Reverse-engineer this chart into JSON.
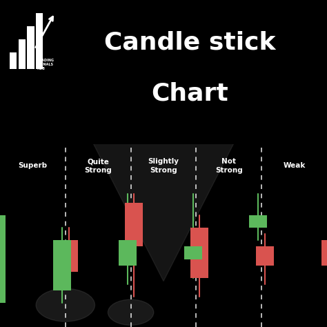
{
  "title_line1": "Candle stick",
  "title_line2": "Chart",
  "bg_color": "#000000",
  "chart_bg": "#3a3a3a",
  "green_color": "#5cb85c",
  "red_color": "#d9534f",
  "dashed_line_color": "#ffffff",
  "label_color": "#ffffff",
  "sections": [
    {
      "label": "Superb",
      "candles": [
        {
          "open": 1.5,
          "close": 8.5,
          "low": 0.5,
          "high": 9.2,
          "color": "green"
        },
        {
          "open": 6.5,
          "close": 4.0,
          "low": 3.0,
          "high": 7.5,
          "color": "red"
        }
      ]
    },
    {
      "label": "Quite\nStrong",
      "candles": [
        {
          "open": 2.5,
          "close": 6.5,
          "low": 1.5,
          "high": 7.5,
          "color": "green"
        },
        {
          "open": 9.5,
          "close": 6.0,
          "low": 2.0,
          "high": 10.2,
          "color": "red"
        }
      ]
    },
    {
      "label": "Slightly\nStrong",
      "candles": [
        {
          "open": 4.5,
          "close": 6.5,
          "low": 3.0,
          "high": 10.2,
          "color": "green"
        },
        {
          "open": 7.5,
          "close": 3.5,
          "low": 2.0,
          "high": 8.5,
          "color": "red"
        }
      ]
    },
    {
      "label": "Not\nStrong",
      "candles": [
        {
          "open": 5.0,
          "close": 6.0,
          "low": 3.5,
          "high": 10.2,
          "color": "green"
        },
        {
          "open": 6.0,
          "close": 4.5,
          "low": 3.0,
          "high": 7.0,
          "color": "red"
        }
      ]
    },
    {
      "label": "Weak",
      "candles": [
        {
          "open": 7.5,
          "close": 8.5,
          "low": 6.5,
          "high": 10.2,
          "color": "green"
        },
        {
          "open": 6.5,
          "close": 4.5,
          "low": 0.5,
          "high": 7.5,
          "color": "red"
        }
      ]
    }
  ],
  "y_min": 0,
  "y_max": 11
}
